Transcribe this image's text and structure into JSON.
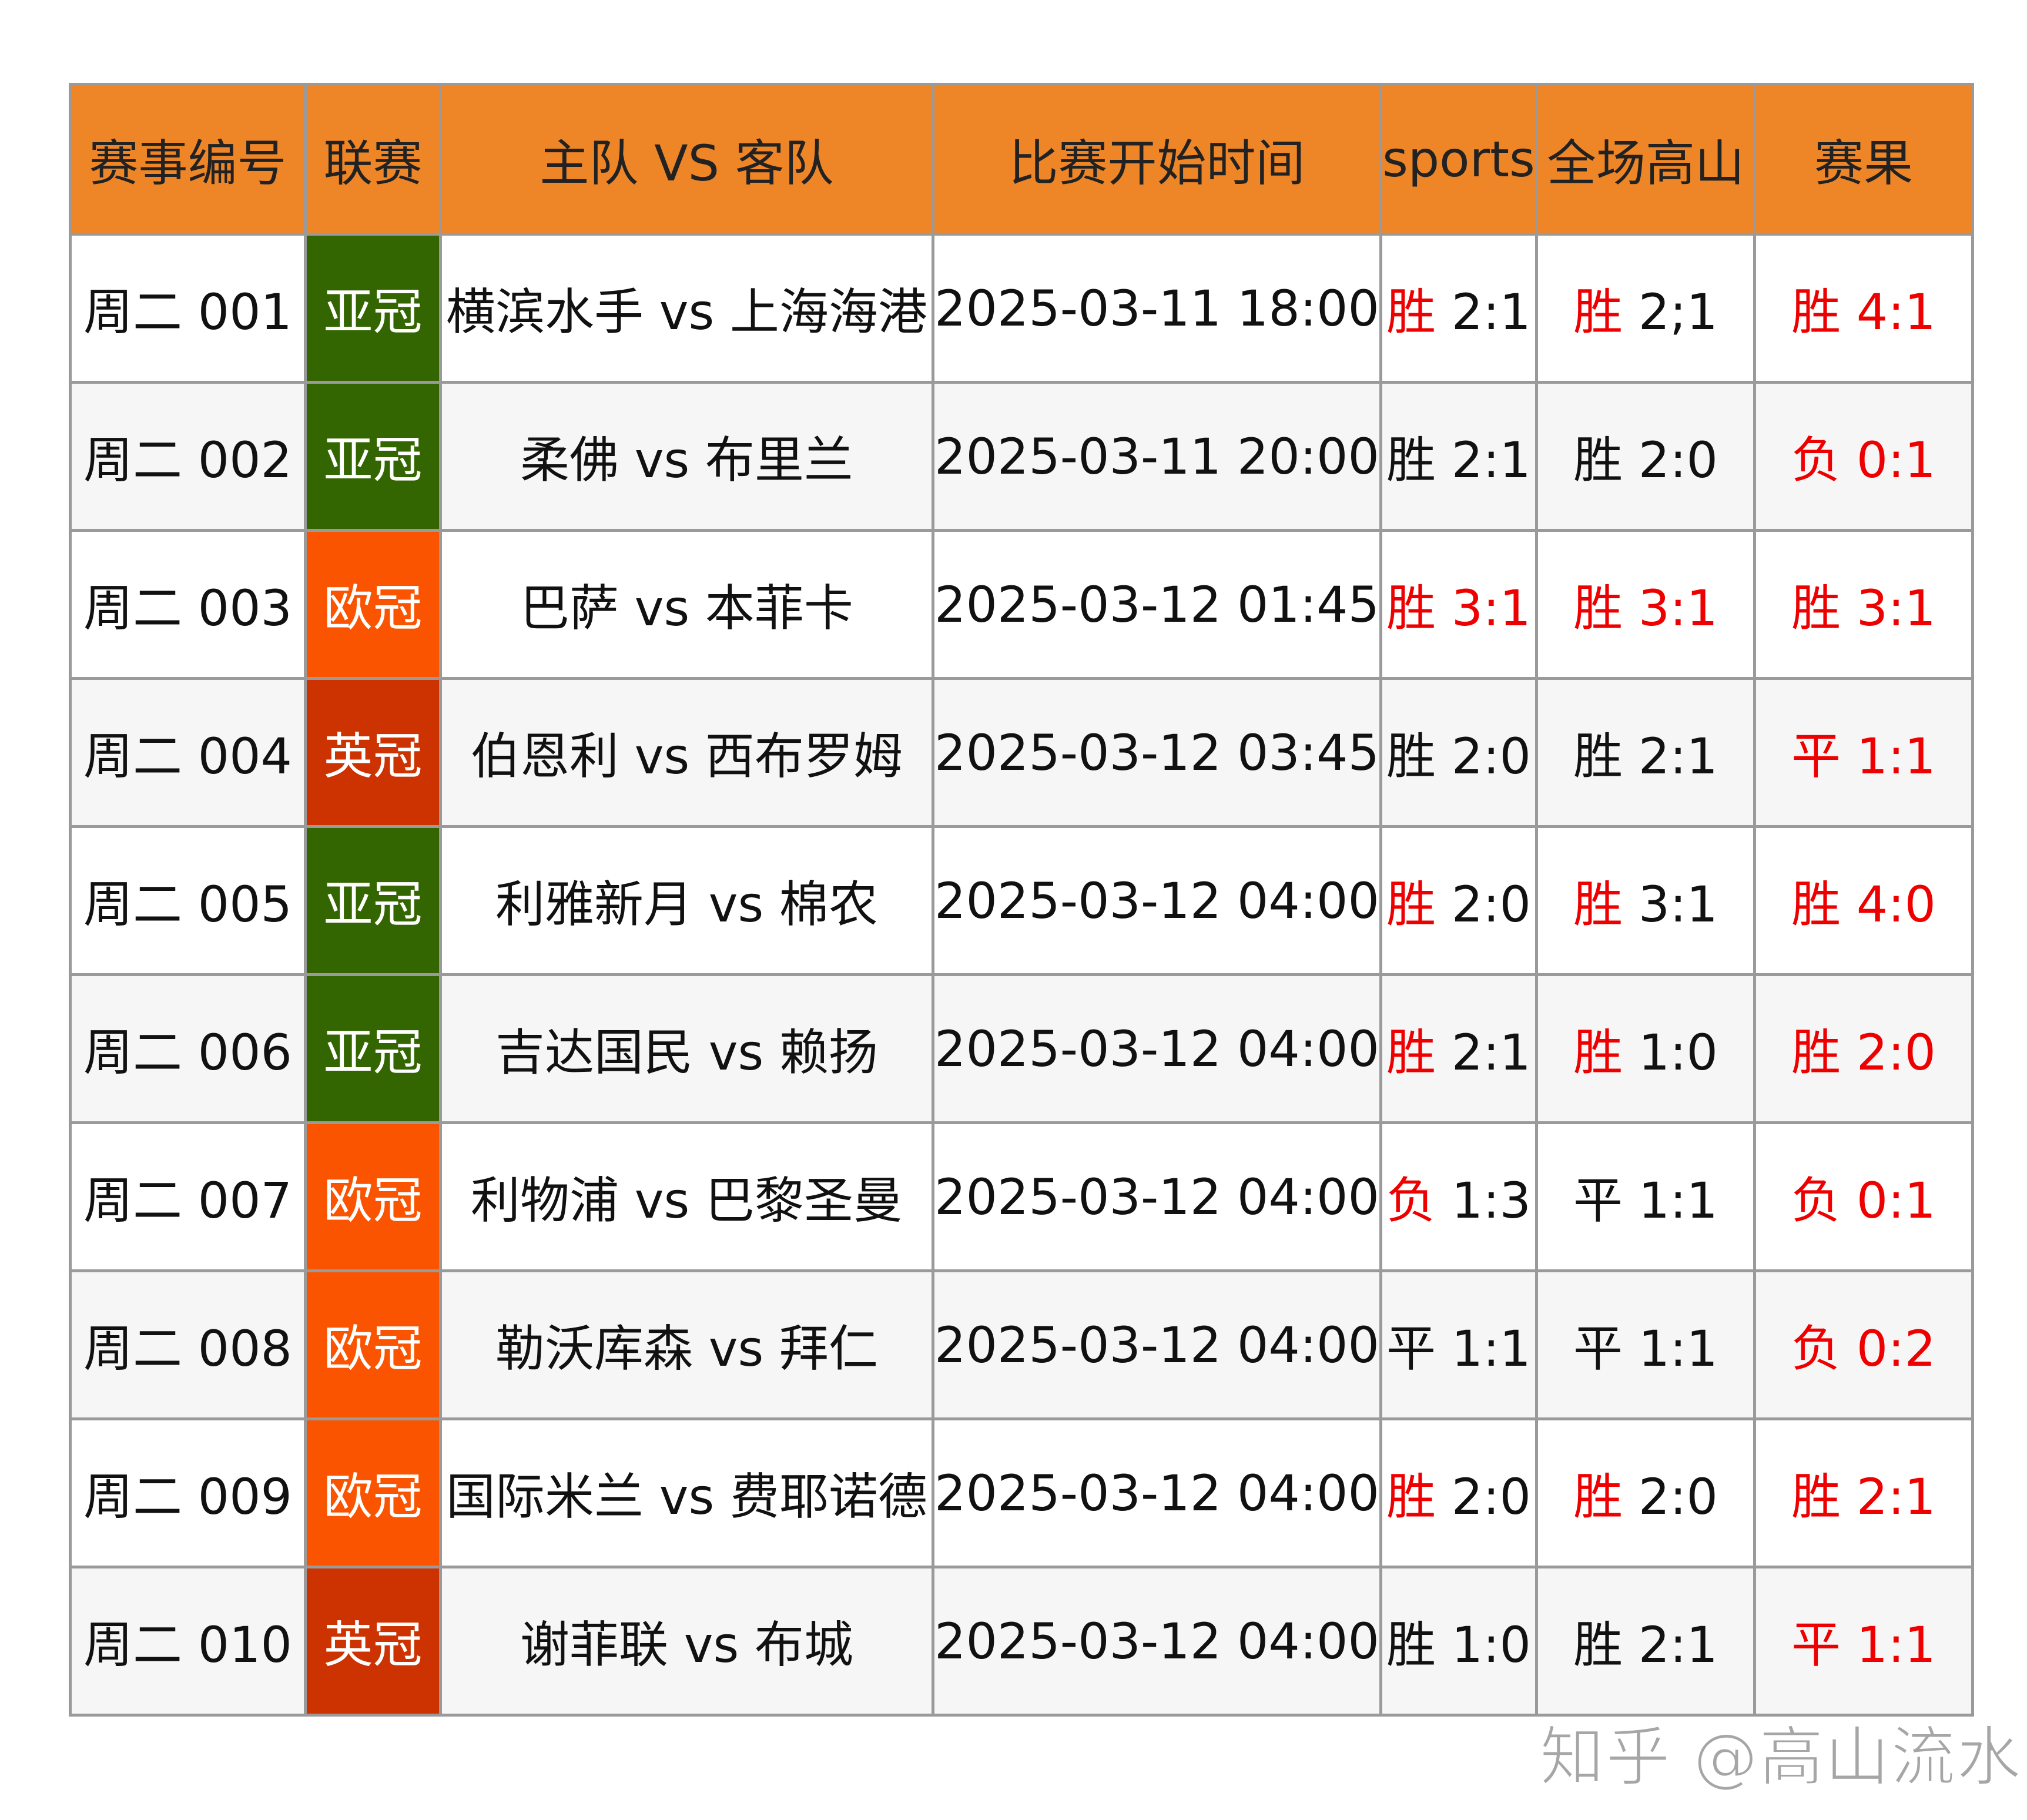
{
  "colors": {
    "header": "#ee8627",
    "league": {
      "亚冠": "#336600",
      "欧冠": "#fa5400",
      "英冠": "#cc3300"
    },
    "red": "#ee0000",
    "black": "#111111"
  },
  "headers": [
    "赛事编号",
    "联赛",
    "主队 VS 客队",
    "比赛开始时间",
    "sports",
    "全场高山",
    "赛果"
  ],
  "rows": [
    {
      "id": "周二 001",
      "league": "亚冠",
      "match": "横滨水手 vs 上海海港",
      "time": "2025-03-11 18:00",
      "sports": {
        "r": "胜",
        "s": "2:1",
        "rc": "red",
        "sc": "black"
      },
      "gaoshan": {
        "r": "胜",
        "s": "2;1",
        "rc": "red",
        "sc": "black"
      },
      "result": {
        "r": "胜",
        "s": "4:1",
        "rc": "red",
        "sc": "red"
      }
    },
    {
      "id": "周二 002",
      "league": "亚冠",
      "match": "柔佛 vs 布里兰",
      "time": "2025-03-11 20:00",
      "sports": {
        "r": "胜",
        "s": "2:1",
        "rc": "black",
        "sc": "black"
      },
      "gaoshan": {
        "r": "胜",
        "s": "2:0",
        "rc": "black",
        "sc": "black"
      },
      "result": {
        "r": "负",
        "s": "0:1",
        "rc": "red",
        "sc": "red"
      }
    },
    {
      "id": "周二 003",
      "league": "欧冠",
      "match": "巴萨 vs 本菲卡",
      "time": "2025-03-12 01:45",
      "sports": {
        "r": "胜",
        "s": "3:1",
        "rc": "red",
        "sc": "red"
      },
      "gaoshan": {
        "r": "胜",
        "s": "3:1",
        "rc": "red",
        "sc": "red"
      },
      "result": {
        "r": "胜",
        "s": "3:1",
        "rc": "red",
        "sc": "red"
      }
    },
    {
      "id": "周二 004",
      "league": "英冠",
      "match": "伯恩利 vs 西布罗姆",
      "time": "2025-03-12 03:45",
      "sports": {
        "r": "胜",
        "s": "2:0",
        "rc": "black",
        "sc": "black"
      },
      "gaoshan": {
        "r": "胜",
        "s": "2:1",
        "rc": "black",
        "sc": "black"
      },
      "result": {
        "r": "平",
        "s": "1:1",
        "rc": "red",
        "sc": "red"
      }
    },
    {
      "id": "周二 005",
      "league": "亚冠",
      "match": "利雅新月 vs 棉农",
      "time": "2025-03-12 04:00",
      "sports": {
        "r": "胜",
        "s": "2:0",
        "rc": "red",
        "sc": "black"
      },
      "gaoshan": {
        "r": "胜",
        "s": "3:1",
        "rc": "red",
        "sc": "black"
      },
      "result": {
        "r": "胜",
        "s": "4:0",
        "rc": "red",
        "sc": "red"
      }
    },
    {
      "id": "周二 006",
      "league": "亚冠",
      "match": "吉达国民 vs 赖扬",
      "time": "2025-03-12 04:00",
      "sports": {
        "r": "胜",
        "s": "2:1",
        "rc": "red",
        "sc": "black"
      },
      "gaoshan": {
        "r": "胜",
        "s": "1:0",
        "rc": "red",
        "sc": "black"
      },
      "result": {
        "r": "胜",
        "s": "2:0",
        "rc": "red",
        "sc": "red"
      }
    },
    {
      "id": "周二 007",
      "league": "欧冠",
      "match": "利物浦 vs 巴黎圣曼",
      "time": "2025-03-12 04:00",
      "sports": {
        "r": "负",
        "s": "1:3",
        "rc": "red",
        "sc": "black"
      },
      "gaoshan": {
        "r": "平",
        "s": "1:1",
        "rc": "black",
        "sc": "black"
      },
      "result": {
        "r": "负",
        "s": "0:1",
        "rc": "red",
        "sc": "red"
      }
    },
    {
      "id": "周二 008",
      "league": "欧冠",
      "match": "勒沃库森 vs 拜仁",
      "time": "2025-03-12 04:00",
      "sports": {
        "r": "平",
        "s": "1:1",
        "rc": "black",
        "sc": "black"
      },
      "gaoshan": {
        "r": "平",
        "s": "1:1",
        "rc": "black",
        "sc": "black"
      },
      "result": {
        "r": "负",
        "s": "0:2",
        "rc": "red",
        "sc": "red"
      }
    },
    {
      "id": "周二 009",
      "league": "欧冠",
      "match": "国际米兰 vs 费耶诺德",
      "time": "2025-03-12 04:00",
      "sports": {
        "r": "胜",
        "s": "2:0",
        "rc": "red",
        "sc": "black"
      },
      "gaoshan": {
        "r": "胜",
        "s": "2:0",
        "rc": "red",
        "sc": "black"
      },
      "result": {
        "r": "胜",
        "s": "2:1",
        "rc": "red",
        "sc": "red"
      }
    },
    {
      "id": "周二 010",
      "league": "英冠",
      "match": "谢菲联 vs 布城",
      "time": "2025-03-12 04:00",
      "sports": {
        "r": "胜",
        "s": "1:0",
        "rc": "black",
        "sc": "black"
      },
      "gaoshan": {
        "r": "胜",
        "s": "2:1",
        "rc": "black",
        "sc": "black"
      },
      "result": {
        "r": "平",
        "s": "1:1",
        "rc": "red",
        "sc": "red"
      }
    }
  ],
  "watermark": "知乎 @高山流水"
}
